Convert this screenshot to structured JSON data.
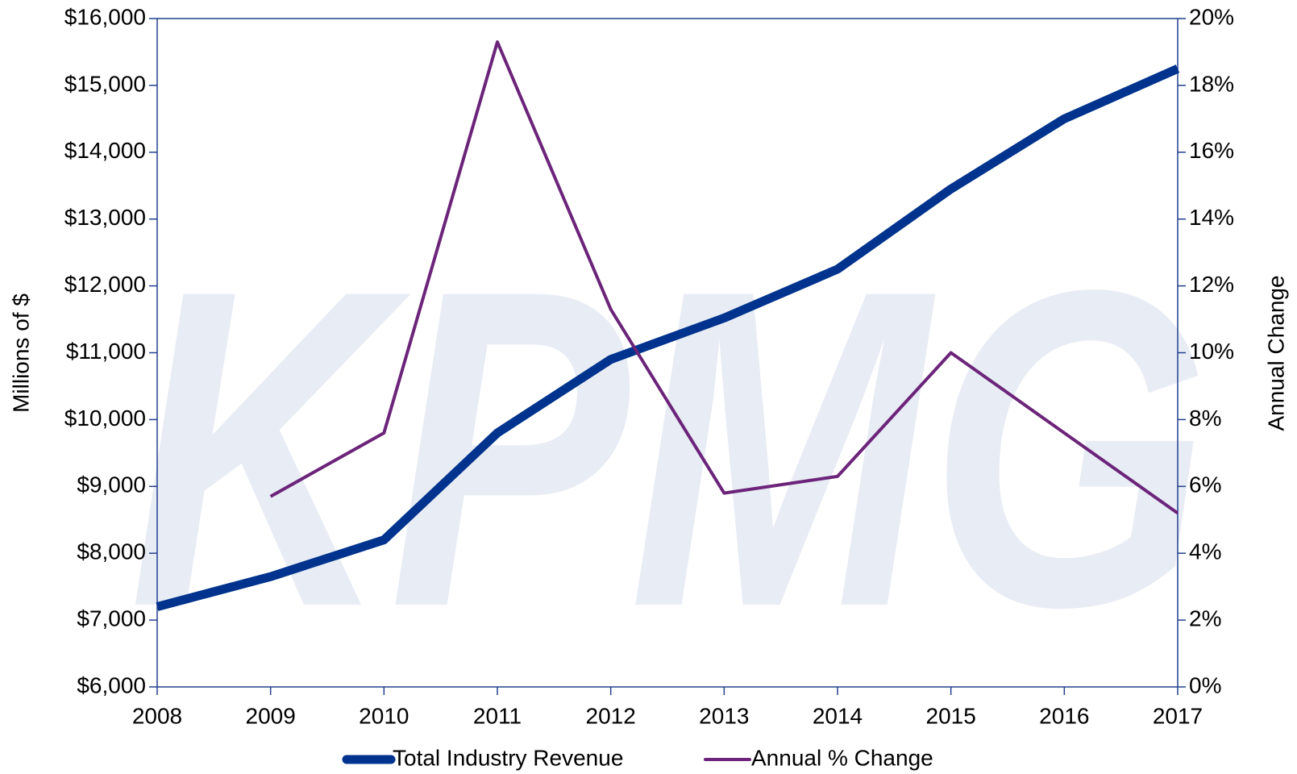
{
  "chart_data": {
    "type": "line",
    "watermark": "KPMG",
    "y_label": "Millions of $",
    "y2_label": "Annual Change",
    "x": [
      2008,
      2009,
      2010,
      2011,
      2012,
      2013,
      2014,
      2015,
      2016,
      2017
    ],
    "xlim": [
      2008,
      2017
    ],
    "xticks": [
      2008,
      2009,
      2010,
      2011,
      2012,
      2013,
      2014,
      2015,
      2016,
      2017
    ],
    "ylim": [
      6000,
      16000
    ],
    "yticks": [
      {
        "value": 6000,
        "label": "$6,000"
      },
      {
        "value": 7000,
        "label": "$7,000"
      },
      {
        "value": 8000,
        "label": "$8,000"
      },
      {
        "value": 9000,
        "label": "$9,000"
      },
      {
        "value": 10000,
        "label": "$10,000"
      },
      {
        "value": 11000,
        "label": "$11,000"
      },
      {
        "value": 12000,
        "label": "$12,000"
      },
      {
        "value": 13000,
        "label": "$13,000"
      },
      {
        "value": 14000,
        "label": "$14,000"
      },
      {
        "value": 15000,
        "label": "$15,000"
      },
      {
        "value": 16000,
        "label": "$16,000"
      }
    ],
    "y2lim": [
      0,
      20
    ],
    "y2ticks": [
      {
        "value": 0,
        "label": "0%"
      },
      {
        "value": 2,
        "label": "2%"
      },
      {
        "value": 4,
        "label": "4%"
      },
      {
        "value": 6,
        "label": "6%"
      },
      {
        "value": 8,
        "label": "8%"
      },
      {
        "value": 10,
        "label": "10%"
      },
      {
        "value": 12,
        "label": "12%"
      },
      {
        "value": 14,
        "label": "14%"
      },
      {
        "value": 16,
        "label": "16%"
      },
      {
        "value": 18,
        "label": "18%"
      },
      {
        "value": 20,
        "label": "20%"
      }
    ],
    "legend": "bottom",
    "series": [
      {
        "name": "Total Industry Revenue",
        "color": "#00338d",
        "values": [
          7200,
          7650,
          8200,
          9800,
          10900,
          11520,
          12250,
          13450,
          14500,
          15250
        ]
      },
      {
        "name": "Annual % Change",
        "color": "#6b2479",
        "axis": "y2",
        "values": [
          null,
          5.7,
          7.6,
          19.3,
          11.3,
          5.8,
          6.3,
          10.0,
          7.6,
          5.2
        ]
      }
    ]
  }
}
